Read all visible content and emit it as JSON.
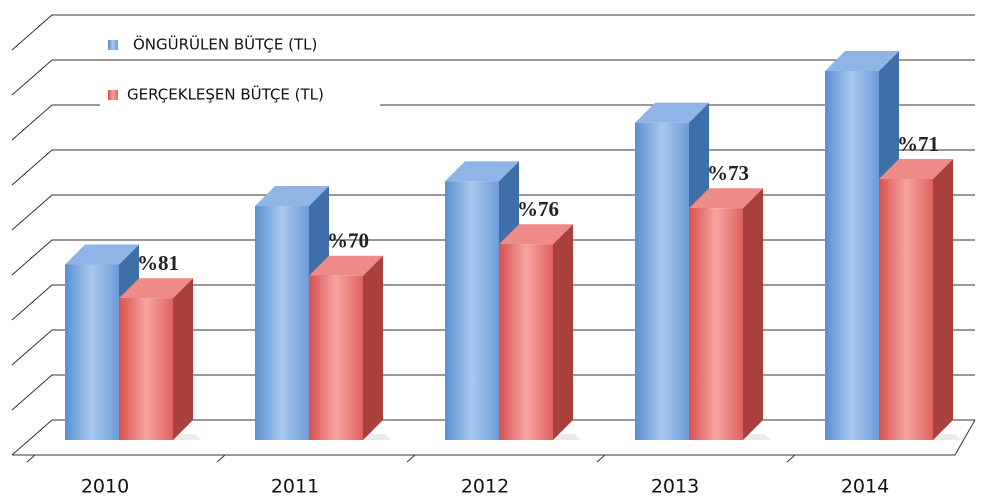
{
  "chart_data": {
    "type": "bar3d",
    "categories": [
      "2010",
      "2011",
      "2012",
      "2013",
      "2014"
    ],
    "series": [
      {
        "name": "ÖNGÜRÜLEN BÜTÇE (TL)",
        "color": "#6f9fd8",
        "values": [
          3.9,
          5.2,
          5.75,
          7.05,
          8.2
        ]
      },
      {
        "name": "GERÇEKLEŞEN BÜTÇE (TL)",
        "color": "#e56a68",
        "values": [
          3.15,
          3.65,
          4.35,
          5.15,
          5.8
        ]
      }
    ],
    "annotations": [
      "%81",
      "%70",
      "%76",
      "%73",
      "%71"
    ],
    "ylim": [
      0,
      9
    ],
    "yticks": [
      0,
      1,
      2,
      3,
      4,
      5,
      6,
      7,
      8,
      9
    ],
    "grid": true
  }
}
